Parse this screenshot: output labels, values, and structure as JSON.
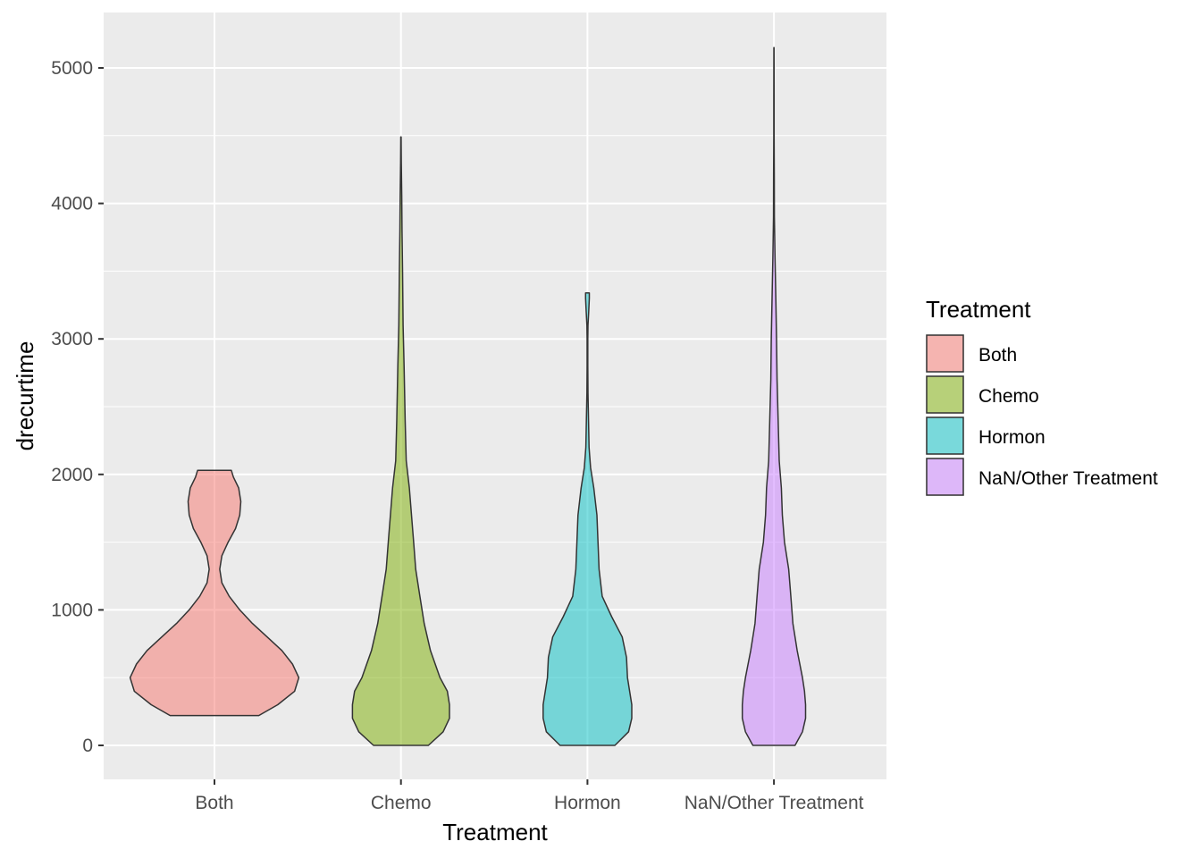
{
  "chart_data": {
    "type": "violin",
    "title": "",
    "xlabel": "Treatment",
    "ylabel": "drecurtime",
    "ylim": [
      -250,
      5400
    ],
    "yticks": [
      0,
      1000,
      2000,
      3000,
      4000,
      5000
    ],
    "ytick_labels": [
      "0",
      "1000",
      "2000",
      "3000",
      "4000",
      "5000"
    ],
    "categories": [
      "Both",
      "Chemo",
      "Hormon",
      "NaN/Other Treatment"
    ],
    "grid": true,
    "legend": {
      "title": "Treatment",
      "position": "right",
      "entries": [
        "Both",
        "Chemo",
        "Hormon",
        "NaN/Other Treatment"
      ]
    },
    "series": [
      {
        "name": "Both",
        "color": "#F8766D",
        "min": 220,
        "max": 2030,
        "density": [
          [
            220,
            0.42
          ],
          [
            300,
            0.6
          ],
          [
            400,
            0.76
          ],
          [
            500,
            0.8
          ],
          [
            600,
            0.74
          ],
          [
            700,
            0.64
          ],
          [
            800,
            0.5
          ],
          [
            900,
            0.36
          ],
          [
            1000,
            0.24
          ],
          [
            1100,
            0.14
          ],
          [
            1200,
            0.07
          ],
          [
            1300,
            0.05
          ],
          [
            1400,
            0.07
          ],
          [
            1500,
            0.13
          ],
          [
            1600,
            0.2
          ],
          [
            1700,
            0.24
          ],
          [
            1800,
            0.25
          ],
          [
            1900,
            0.23
          ],
          [
            1980,
            0.18
          ],
          [
            2030,
            0.16
          ]
        ]
      },
      {
        "name": "Chemo",
        "color": "#7CAE00",
        "min": 0,
        "max": 4490,
        "density": [
          [
            0,
            0.26
          ],
          [
            100,
            0.4
          ],
          [
            200,
            0.46
          ],
          [
            300,
            0.46
          ],
          [
            400,
            0.44
          ],
          [
            500,
            0.37
          ],
          [
            700,
            0.28
          ],
          [
            900,
            0.22
          ],
          [
            1100,
            0.18
          ],
          [
            1300,
            0.14
          ],
          [
            1500,
            0.12
          ],
          [
            1700,
            0.1
          ],
          [
            1900,
            0.08
          ],
          [
            2100,
            0.05
          ],
          [
            2400,
            0.04
          ],
          [
            2800,
            0.03
          ],
          [
            3100,
            0.02
          ],
          [
            3500,
            0.015
          ],
          [
            3800,
            0.01
          ],
          [
            4050,
            0.008
          ],
          [
            4300,
            0.003
          ],
          [
            4490,
            0.002
          ]
        ]
      },
      {
        "name": "Hormon",
        "color": "#00BFC4",
        "min": 0,
        "max": 3340,
        "density": [
          [
            0,
            0.26
          ],
          [
            100,
            0.39
          ],
          [
            200,
            0.42
          ],
          [
            300,
            0.42
          ],
          [
            400,
            0.4
          ],
          [
            500,
            0.38
          ],
          [
            650,
            0.37
          ],
          [
            800,
            0.33
          ],
          [
            950,
            0.23
          ],
          [
            1100,
            0.14
          ],
          [
            1300,
            0.11
          ],
          [
            1500,
            0.1
          ],
          [
            1700,
            0.09
          ],
          [
            1900,
            0.06
          ],
          [
            2050,
            0.03
          ],
          [
            2200,
            0.015
          ],
          [
            2400,
            0.01
          ],
          [
            2600,
            0.005
          ],
          [
            2800,
            0.003
          ],
          [
            3000,
            0.003
          ],
          [
            3100,
            0.005
          ],
          [
            3200,
            0.012
          ],
          [
            3300,
            0.018
          ],
          [
            3340,
            0.018
          ]
        ]
      },
      {
        "name": "NaN/Other Treatment",
        "color": "#C77CFF",
        "min": 0,
        "max": 5150,
        "density": [
          [
            0,
            0.2
          ],
          [
            100,
            0.27
          ],
          [
            200,
            0.3
          ],
          [
            300,
            0.3
          ],
          [
            400,
            0.29
          ],
          [
            500,
            0.27
          ],
          [
            700,
            0.22
          ],
          [
            900,
            0.18
          ],
          [
            1100,
            0.16
          ],
          [
            1300,
            0.14
          ],
          [
            1500,
            0.1
          ],
          [
            1700,
            0.08
          ],
          [
            1900,
            0.07
          ],
          [
            2100,
            0.05
          ],
          [
            2400,
            0.04
          ],
          [
            2700,
            0.03
          ],
          [
            3000,
            0.025
          ],
          [
            3300,
            0.018
          ],
          [
            3600,
            0.01
          ],
          [
            3900,
            0.004
          ],
          [
            4200,
            0.003
          ],
          [
            4500,
            0.002
          ],
          [
            4800,
            0.0015
          ],
          [
            5150,
            0.001
          ]
        ]
      }
    ]
  }
}
